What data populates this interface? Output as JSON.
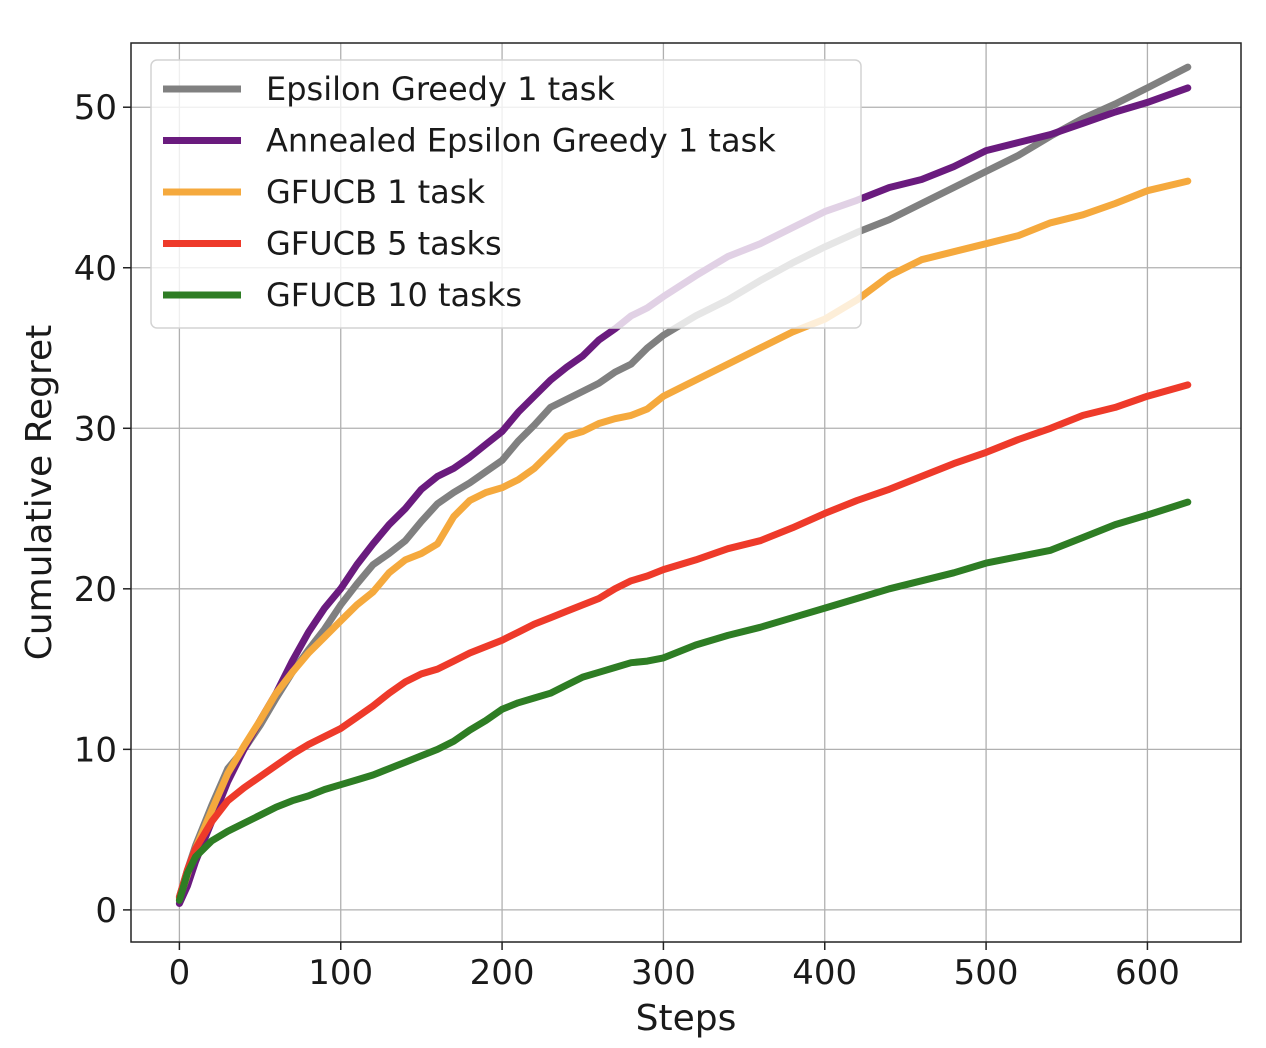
{
  "chart_data": {
    "type": "line",
    "title": "",
    "xlabel": "Steps",
    "ylabel": "Cumulative Regret",
    "xlim": [
      -30,
      658
    ],
    "ylim": [
      -2,
      54
    ],
    "xticks": [
      0,
      100,
      200,
      300,
      400,
      500,
      600
    ],
    "yticks": [
      0,
      10,
      20,
      30,
      40,
      50
    ],
    "grid": true,
    "legend_position": "upper-left",
    "series": [
      {
        "name": "Epsilon Greedy 1 task",
        "color": "#808080",
        "x": [
          0,
          5,
          10,
          20,
          30,
          40,
          50,
          60,
          70,
          80,
          90,
          100,
          110,
          120,
          130,
          140,
          150,
          160,
          170,
          180,
          190,
          200,
          210,
          220,
          230,
          240,
          250,
          260,
          270,
          280,
          290,
          300,
          320,
          340,
          360,
          380,
          400,
          420,
          440,
          460,
          480,
          500,
          520,
          540,
          560,
          580,
          600,
          625
        ],
        "y": [
          0.8,
          2.5,
          4.0,
          6.5,
          8.8,
          10.0,
          11.5,
          13.2,
          14.8,
          16.2,
          17.5,
          19.0,
          20.3,
          21.5,
          22.2,
          23.0,
          24.2,
          25.3,
          26.0,
          26.6,
          27.3,
          28.0,
          29.2,
          30.2,
          31.3,
          31.8,
          32.3,
          32.8,
          33.5,
          34.0,
          35.0,
          35.8,
          37.0,
          38.0,
          39.2,
          40.3,
          41.3,
          42.2,
          43.0,
          44.0,
          45.0,
          46.0,
          47.0,
          48.2,
          49.3,
          50.2,
          51.2,
          52.5
        ]
      },
      {
        "name": "Annealed Epsilon Greedy 1 task",
        "color": "#6a1b7e",
        "x": [
          0,
          5,
          10,
          20,
          30,
          40,
          50,
          60,
          70,
          80,
          90,
          100,
          110,
          120,
          130,
          140,
          150,
          160,
          170,
          180,
          190,
          200,
          210,
          220,
          230,
          240,
          250,
          260,
          270,
          280,
          290,
          300,
          320,
          340,
          360,
          380,
          400,
          420,
          440,
          460,
          480,
          500,
          520,
          540,
          560,
          580,
          600,
          625
        ],
        "y": [
          0.4,
          1.5,
          3.0,
          5.5,
          8.0,
          10.0,
          11.8,
          13.5,
          15.5,
          17.3,
          18.8,
          20.0,
          21.5,
          22.8,
          24.0,
          25.0,
          26.2,
          27.0,
          27.5,
          28.2,
          29.0,
          29.8,
          31.0,
          32.0,
          33.0,
          33.8,
          34.5,
          35.5,
          36.2,
          37.0,
          37.5,
          38.2,
          39.5,
          40.7,
          41.5,
          42.5,
          43.5,
          44.2,
          45.0,
          45.5,
          46.3,
          47.3,
          47.8,
          48.3,
          49.0,
          49.7,
          50.3,
          51.2
        ]
      },
      {
        "name": "GFUCB 1 task",
        "color": "#f5a93d",
        "x": [
          0,
          5,
          10,
          20,
          30,
          40,
          50,
          60,
          70,
          80,
          90,
          100,
          110,
          120,
          130,
          140,
          150,
          160,
          170,
          180,
          190,
          200,
          210,
          220,
          230,
          240,
          250,
          260,
          270,
          280,
          290,
          300,
          320,
          340,
          360,
          380,
          400,
          420,
          440,
          460,
          480,
          500,
          520,
          540,
          560,
          580,
          600,
          625
        ],
        "y": [
          0.7,
          2.2,
          3.8,
          6.2,
          8.5,
          10.2,
          11.8,
          13.5,
          14.8,
          16.0,
          17.0,
          18.0,
          19.0,
          19.8,
          21.0,
          21.8,
          22.2,
          22.8,
          24.5,
          25.5,
          26.0,
          26.3,
          26.8,
          27.5,
          28.5,
          29.5,
          29.8,
          30.3,
          30.6,
          30.8,
          31.2,
          32.0,
          33.0,
          34.0,
          35.0,
          36.0,
          36.8,
          38.0,
          39.5,
          40.5,
          41.0,
          41.5,
          42.0,
          42.8,
          43.3,
          44.0,
          44.8,
          45.4
        ]
      },
      {
        "name": "GFUCB 5 tasks",
        "color": "#ee3a2a",
        "x": [
          0,
          5,
          10,
          20,
          30,
          40,
          50,
          60,
          70,
          80,
          90,
          100,
          110,
          120,
          130,
          140,
          150,
          160,
          170,
          180,
          190,
          200,
          210,
          220,
          230,
          240,
          250,
          260,
          270,
          280,
          290,
          300,
          320,
          340,
          360,
          380,
          400,
          420,
          440,
          460,
          480,
          500,
          520,
          540,
          560,
          580,
          600,
          625
        ],
        "y": [
          0.8,
          2.5,
          3.8,
          5.5,
          6.8,
          7.6,
          8.3,
          9.0,
          9.7,
          10.3,
          10.8,
          11.3,
          12.0,
          12.7,
          13.5,
          14.2,
          14.7,
          15.0,
          15.5,
          16.0,
          16.4,
          16.8,
          17.3,
          17.8,
          18.2,
          18.6,
          19.0,
          19.4,
          20.0,
          20.5,
          20.8,
          21.2,
          21.8,
          22.5,
          23.0,
          23.8,
          24.7,
          25.5,
          26.2,
          27.0,
          27.8,
          28.5,
          29.3,
          30.0,
          30.8,
          31.3,
          32.0,
          32.7
        ]
      },
      {
        "name": "GFUCB 10 tasks",
        "color": "#2e7d24",
        "x": [
          0,
          5,
          10,
          20,
          30,
          40,
          50,
          60,
          70,
          80,
          90,
          100,
          110,
          120,
          130,
          140,
          150,
          160,
          170,
          180,
          190,
          200,
          210,
          220,
          230,
          240,
          250,
          260,
          270,
          280,
          290,
          300,
          320,
          340,
          360,
          380,
          400,
          420,
          440,
          460,
          480,
          500,
          520,
          540,
          560,
          580,
          600,
          625
        ],
        "y": [
          0.6,
          2.3,
          3.3,
          4.3,
          4.9,
          5.4,
          5.9,
          6.4,
          6.8,
          7.1,
          7.5,
          7.8,
          8.1,
          8.4,
          8.8,
          9.2,
          9.6,
          10.0,
          10.5,
          11.2,
          11.8,
          12.5,
          12.9,
          13.2,
          13.5,
          14.0,
          14.5,
          14.8,
          15.1,
          15.4,
          15.5,
          15.7,
          16.5,
          17.1,
          17.6,
          18.2,
          18.8,
          19.4,
          20.0,
          20.5,
          21.0,
          21.6,
          22.0,
          22.4,
          23.2,
          24.0,
          24.6,
          25.4
        ]
      }
    ]
  }
}
